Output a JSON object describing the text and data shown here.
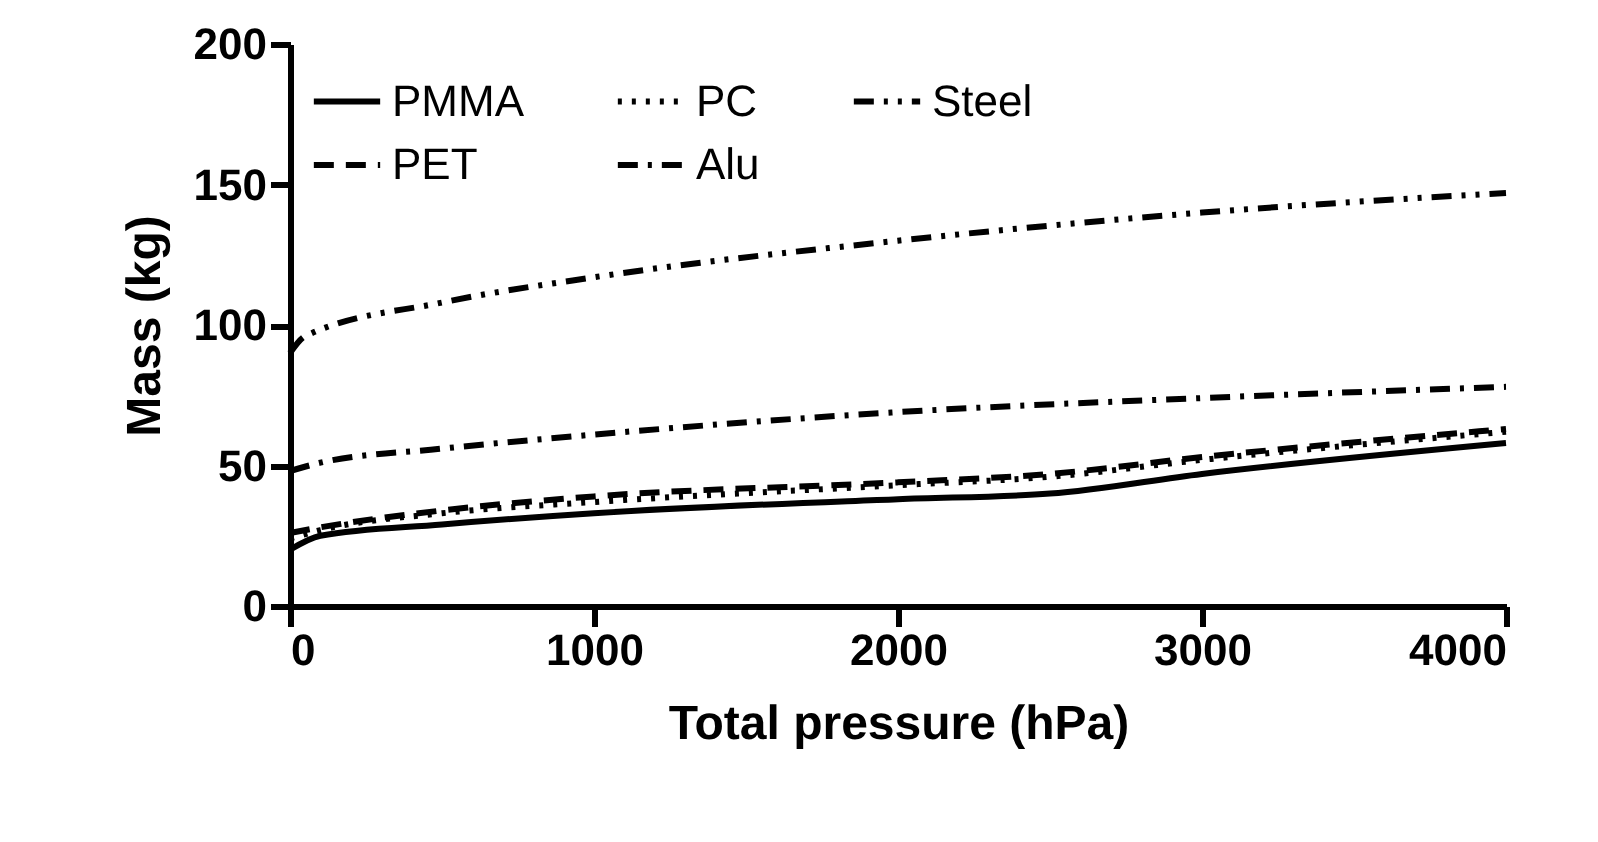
{
  "chart_data": {
    "type": "line",
    "xlabel": "Total pressure (hPa)",
    "ylabel": "Mass (kg)",
    "xlim": [
      0,
      4000
    ],
    "ylim": [
      0,
      200
    ],
    "xticks": [
      0,
      1000,
      2000,
      3000,
      4000
    ],
    "yticks": [
      0,
      50,
      100,
      150,
      200
    ],
    "legend": "top left",
    "grid": false,
    "marker": "none",
    "series": [
      {
        "name": "PMMA",
        "color": "#000000",
        "line_style": "solid",
        "x": [
          0,
          100,
          500,
          1000,
          2000,
          2500,
          3000,
          4000
        ],
        "values": [
          20,
          25,
          29,
          33,
          38,
          40,
          47,
          58
        ]
      },
      {
        "name": "PET",
        "color": "#000000",
        "line_style": "dashed",
        "x": [
          0,
          100,
          500,
          1000,
          2000,
          2500,
          3000,
          4000
        ],
        "values": [
          26,
          28,
          34,
          39,
          44,
          47,
          53,
          63
        ]
      },
      {
        "name": "PC",
        "color": "#000000",
        "line_style": "dotted",
        "x": [
          0,
          100,
          500,
          1000,
          2000,
          2500,
          3000,
          4000
        ],
        "values": [
          24,
          27,
          33,
          37,
          43,
          46,
          52,
          62
        ]
      },
      {
        "name": "Alu",
        "color": "#000000",
        "line_style": "dashdot",
        "x": [
          0,
          100,
          500,
          1000,
          2000,
          3000,
          4000
        ],
        "values": [
          48,
          51,
          56,
          61,
          69,
          74,
          78
        ]
      },
      {
        "name": "Steel",
        "color": "#000000",
        "line_style": "dashdotdot",
        "x": [
          0,
          50,
          500,
          1000,
          2000,
          3000,
          4000
        ],
        "values": [
          90,
          96,
          108,
          117,
          130,
          140,
          147
        ]
      }
    ]
  }
}
